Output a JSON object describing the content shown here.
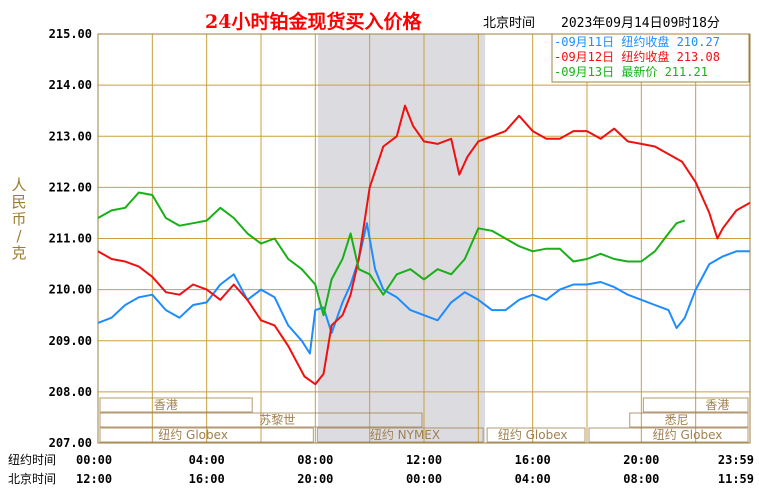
{
  "header": {
    "title": "24小时铂金现货买入价格",
    "timezone_label": "北京时间",
    "timestamp": "2023年09月14日09时18分"
  },
  "colors": {
    "title": "#ff0000",
    "grid": "#c8a040",
    "frame": "#9c8040",
    "ny_band": "#dcdce0",
    "sep11": "#1e8cff",
    "sep12": "#ee1111",
    "sep13": "#18b018",
    "market_label": "#a08050",
    "axis_text": "#000000",
    "ylabel_text": "#9c7c30"
  },
  "time_labels": {
    "ny_row_label": "纽约时间",
    "bj_row_label": "北京时间",
    "ny_ticks": [
      "00:00",
      "04:00",
      "08:00",
      "12:00",
      "16:00",
      "20:00",
      "23:59"
    ],
    "bj_ticks": [
      "12:00",
      "16:00",
      "20:00",
      "00:00",
      "04:00",
      "08:00",
      "11:59"
    ]
  },
  "markets": [
    {
      "name": "香港",
      "row": 0
    },
    {
      "name": "苏黎世",
      "row": 1
    },
    {
      "name": "纽约 Globex",
      "row": 2
    },
    {
      "name": "纽约 NYMEX",
      "row": 2
    },
    {
      "name": "纽约 Globex",
      "row": 2
    },
    {
      "name": "纽约 Globex",
      "row": 2
    },
    {
      "name": "悉尼",
      "row": 1
    },
    {
      "name": "香港",
      "row": 0
    }
  ],
  "chart_data": {
    "type": "line",
    "title": "24小时铂金现货买入价格",
    "ylabel": "人民币/克",
    "ylim": [
      207.0,
      215.0
    ],
    "y_ticks": [
      "207.00",
      "208.00",
      "209.00",
      "210.00",
      "211.00",
      "212.00",
      "213.00",
      "214.00",
      "215.00"
    ],
    "x_unit": "hours (NY time 00:00 → 23:59)",
    "xlim": [
      0,
      24
    ],
    "grid": true,
    "shaded_band_hours": [
      8.1,
      14.25
    ],
    "legend_position": "top-right",
    "series": [
      {
        "name": "09月11日",
        "legend_text": "-09月11日  纽约收盘 210.27",
        "value_label": "纽约收盘",
        "value": "210.27",
        "color_key": "sep11",
        "points": [
          [
            0,
            209.35
          ],
          [
            0.5,
            209.45
          ],
          [
            1,
            209.7
          ],
          [
            1.5,
            209.85
          ],
          [
            2,
            209.9
          ],
          [
            2.5,
            209.6
          ],
          [
            3,
            209.45
          ],
          [
            3.5,
            209.7
          ],
          [
            4,
            209.75
          ],
          [
            4.5,
            210.1
          ],
          [
            5,
            210.3
          ],
          [
            5.5,
            209.8
          ],
          [
            6,
            210.0
          ],
          [
            6.5,
            209.85
          ],
          [
            7,
            209.3
          ],
          [
            7.5,
            209.0
          ],
          [
            7.8,
            208.75
          ],
          [
            8,
            209.6
          ],
          [
            8.3,
            209.65
          ],
          [
            8.6,
            209.15
          ],
          [
            9,
            209.75
          ],
          [
            9.3,
            210.1
          ],
          [
            9.6,
            210.6
          ],
          [
            9.9,
            211.3
          ],
          [
            10.2,
            210.4
          ],
          [
            10.5,
            210.0
          ],
          [
            11,
            209.85
          ],
          [
            11.5,
            209.6
          ],
          [
            12,
            209.5
          ],
          [
            12.5,
            209.4
          ],
          [
            13,
            209.75
          ],
          [
            13.5,
            209.95
          ],
          [
            14,
            209.8
          ],
          [
            14.5,
            209.6
          ],
          [
            15,
            209.6
          ],
          [
            15.5,
            209.8
          ],
          [
            16,
            209.9
          ],
          [
            16.5,
            209.8
          ],
          [
            17,
            210.0
          ],
          [
            17.5,
            210.1
          ],
          [
            18,
            210.1
          ],
          [
            18.5,
            210.15
          ],
          [
            19,
            210.05
          ],
          [
            19.5,
            209.9
          ],
          [
            20,
            209.8
          ],
          [
            20.5,
            209.7
          ],
          [
            21,
            209.6
          ],
          [
            21.3,
            209.25
          ],
          [
            21.6,
            209.45
          ],
          [
            22,
            210.0
          ],
          [
            22.5,
            210.5
          ],
          [
            23,
            210.65
          ],
          [
            23.5,
            210.75
          ],
          [
            24,
            210.75
          ]
        ]
      },
      {
        "name": "09月12日",
        "legend_text": "-09月12日  纽约收盘 213.08",
        "value_label": "纽约收盘",
        "value": "213.08",
        "color_key": "sep12",
        "points": [
          [
            0,
            210.75
          ],
          [
            0.5,
            210.6
          ],
          [
            1,
            210.55
          ],
          [
            1.5,
            210.45
          ],
          [
            2,
            210.25
          ],
          [
            2.5,
            209.95
          ],
          [
            3,
            209.9
          ],
          [
            3.5,
            210.1
          ],
          [
            4,
            210.0
          ],
          [
            4.5,
            209.8
          ],
          [
            5,
            210.1
          ],
          [
            5.5,
            209.8
          ],
          [
            6,
            209.4
          ],
          [
            6.5,
            209.3
          ],
          [
            7,
            208.9
          ],
          [
            7.3,
            208.6
          ],
          [
            7.6,
            208.3
          ],
          [
            8,
            208.15
          ],
          [
            8.3,
            208.35
          ],
          [
            8.6,
            209.3
          ],
          [
            9,
            209.5
          ],
          [
            9.3,
            209.9
          ],
          [
            9.6,
            210.6
          ],
          [
            10,
            212.0
          ],
          [
            10.5,
            212.8
          ],
          [
            11,
            213.0
          ],
          [
            11.3,
            213.6
          ],
          [
            11.6,
            213.2
          ],
          [
            12,
            212.9
          ],
          [
            12.5,
            212.85
          ],
          [
            13,
            212.95
          ],
          [
            13.3,
            212.25
          ],
          [
            13.6,
            212.6
          ],
          [
            14,
            212.9
          ],
          [
            14.5,
            213.0
          ],
          [
            15,
            213.1
          ],
          [
            15.5,
            213.4
          ],
          [
            16,
            213.1
          ],
          [
            16.5,
            212.95
          ],
          [
            17,
            212.95
          ],
          [
            17.5,
            213.1
          ],
          [
            18,
            213.1
          ],
          [
            18.5,
            212.95
          ],
          [
            19,
            213.15
          ],
          [
            19.5,
            212.9
          ],
          [
            20,
            212.85
          ],
          [
            20.5,
            212.8
          ],
          [
            21,
            212.65
          ],
          [
            21.5,
            212.5
          ],
          [
            22,
            212.1
          ],
          [
            22.5,
            211.5
          ],
          [
            22.8,
            211.0
          ],
          [
            23,
            211.2
          ],
          [
            23.5,
            211.55
          ],
          [
            24,
            211.7
          ]
        ]
      },
      {
        "name": "09月13日",
        "legend_text": "-09月13日   最新价 211.21",
        "value_label": "最新价",
        "value": "211.21",
        "color_key": "sep13",
        "points": [
          [
            0,
            211.4
          ],
          [
            0.5,
            211.55
          ],
          [
            1,
            211.6
          ],
          [
            1.5,
            211.9
          ],
          [
            2,
            211.85
          ],
          [
            2.5,
            211.4
          ],
          [
            3,
            211.25
          ],
          [
            3.5,
            211.3
          ],
          [
            4,
            211.35
          ],
          [
            4.5,
            211.6
          ],
          [
            5,
            211.4
          ],
          [
            5.5,
            211.1
          ],
          [
            6,
            210.9
          ],
          [
            6.5,
            211.0
          ],
          [
            7,
            210.6
          ],
          [
            7.5,
            210.4
          ],
          [
            8,
            210.1
          ],
          [
            8.3,
            209.5
          ],
          [
            8.6,
            210.2
          ],
          [
            9,
            210.6
          ],
          [
            9.3,
            211.1
          ],
          [
            9.6,
            210.4
          ],
          [
            10,
            210.3
          ],
          [
            10.5,
            209.9
          ],
          [
            11,
            210.3
          ],
          [
            11.5,
            210.4
          ],
          [
            12,
            210.2
          ],
          [
            12.5,
            210.4
          ],
          [
            13,
            210.3
          ],
          [
            13.5,
            210.6
          ],
          [
            14,
            211.2
          ],
          [
            14.5,
            211.15
          ],
          [
            15,
            211.0
          ],
          [
            15.5,
            210.85
          ],
          [
            16,
            210.75
          ],
          [
            16.5,
            210.8
          ],
          [
            17,
            210.8
          ],
          [
            17.5,
            210.55
          ],
          [
            18,
            210.6
          ],
          [
            18.5,
            210.7
          ],
          [
            19,
            210.6
          ],
          [
            19.5,
            210.55
          ],
          [
            20,
            210.55
          ],
          [
            20.5,
            210.75
          ],
          [
            21,
            211.1
          ],
          [
            21.3,
            211.3
          ],
          [
            21.6,
            211.35
          ]
        ]
      }
    ]
  }
}
